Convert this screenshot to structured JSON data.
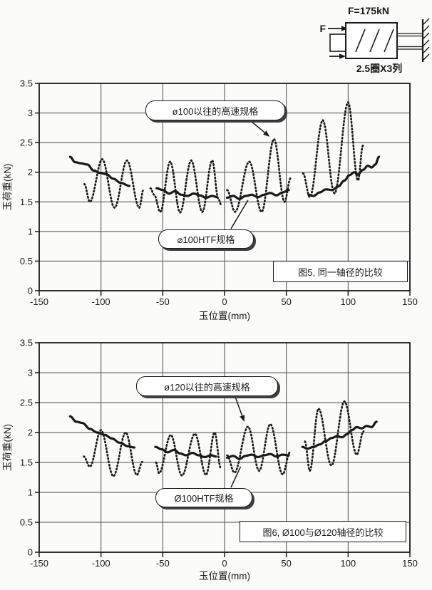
{
  "diagram": {
    "title": "F=175kN",
    "force_label": "F",
    "caption": "2.5圈X3列"
  },
  "colors": {
    "ink": "#1a1a1a",
    "grid": "#4a4a4a",
    "bg": "#fbfbfa",
    "shadow": "#3f3f3f"
  },
  "chart_data": [
    {
      "type": "line",
      "title": "图5, 同一轴径的比较",
      "xlabel": "玉位置(mm)",
      "ylabel": "玉荷重(kN)",
      "xlim": [
        -150,
        150
      ],
      "ylim": [
        0,
        3.5
      ],
      "x_ticks": [
        -150,
        -100,
        -50,
        0,
        50,
        100,
        150
      ],
      "y_ticks": [
        0,
        0.5,
        1,
        1.5,
        2,
        2.5,
        3,
        3.5
      ],
      "grid": true,
      "legend_position": "inline-callouts",
      "series": [
        {
          "name": "ø100以往的高速规格",
          "style": "dotted",
          "segments": [
            [
              [
                -113.5,
                1.8
              ],
              [
                -109,
                1.5
              ],
              [
                -99,
                2.22
              ],
              [
                -89,
                1.4
              ],
              [
                -79,
                2.2
              ],
              [
                -69,
                1.4
              ],
              [
                -65.5,
                1.72
              ]
            ],
            [
              [
                -60,
                1.73
              ],
              [
                -57,
                1.62
              ],
              [
                -52,
                1.33
              ],
              [
                -44,
                2.18
              ],
              [
                -36,
                1.32
              ],
              [
                -27,
                2.2
              ],
              [
                -18,
                1.33
              ],
              [
                -10,
                2.2
              ],
              [
                -5,
                1.55
              ],
              [
                -2.5,
                1.44
              ]
            ],
            [
              [
                2,
                1.7
              ],
              [
                8.5,
                1.33
              ],
              [
                20,
                2.18
              ],
              [
                30,
                1.33
              ],
              [
                40,
                2.56
              ],
              [
                48.5,
                1.5
              ],
              [
                53.5,
                1.9
              ]
            ],
            [
              [
                63.5,
                1.98
              ],
              [
                69,
                1.58
              ],
              [
                79.5,
                2.88
              ],
              [
                89,
                1.64
              ],
              [
                100,
                3.18
              ],
              [
                108,
                1.86
              ],
              [
                112,
                2.45
              ]
            ]
          ]
        },
        {
          "name": "⌀100HTF规格",
          "style": "solid",
          "segments": [
            [
              [
                -125,
                2.26
              ],
              [
                -121,
                2.17
              ],
              [
                -116,
                2.15
              ],
              [
                -111,
                2.13
              ],
              [
                -106,
                2.03
              ],
              [
                -101,
                1.99
              ],
              [
                -96,
                1.97
              ],
              [
                -90,
                1.89
              ],
              [
                -84,
                1.82
              ],
              [
                -77,
                1.77
              ]
            ],
            [
              [
                -55,
                1.73
              ],
              [
                -50,
                1.7
              ],
              [
                -45,
                1.64
              ],
              [
                -40,
                1.68
              ],
              [
                -35,
                1.62
              ],
              [
                -30,
                1.6
              ],
              [
                -25,
                1.64
              ],
              [
                -20,
                1.61
              ],
              [
                -15,
                1.57
              ],
              [
                -10,
                1.6
              ],
              [
                -6,
                1.58
              ]
            ],
            [
              [
                2,
                1.57
              ],
              [
                7,
                1.6
              ],
              [
                12,
                1.55
              ],
              [
                17,
                1.6
              ],
              [
                22,
                1.62
              ],
              [
                27,
                1.58
              ],
              [
                32,
                1.62
              ],
              [
                37,
                1.65
              ],
              [
                42,
                1.61
              ],
              [
                47,
                1.66
              ],
              [
                52,
                1.7
              ]
            ],
            [
              [
                68,
                1.62
              ],
              [
                72,
                1.6
              ],
              [
                77,
                1.66
              ],
              [
                82,
                1.71
              ],
              [
                87,
                1.7
              ],
              [
                92,
                1.76
              ],
              [
                97,
                1.86
              ],
              [
                101,
                1.95
              ],
              [
                105,
                2.0
              ],
              [
                108,
                1.96
              ],
              [
                112,
                2.04
              ],
              [
                116,
                2.11
              ],
              [
                119,
                2.08
              ],
              [
                122,
                2.13
              ],
              [
                125,
                2.26
              ]
            ]
          ]
        }
      ],
      "annotations": [
        {
          "series": 0,
          "target_x": 36.5,
          "target_y": 2.6,
          "arrowhead": true
        },
        {
          "series": 1,
          "target_x": 19,
          "target_y": 1.53,
          "arrowhead": false
        }
      ]
    },
    {
      "type": "line",
      "title": "图6, Ø100与Ø120轴径的比较",
      "xlabel": "玉位置(mm)",
      "ylabel": "玉荷重(kN)",
      "xlim": [
        -150,
        150
      ],
      "ylim": [
        0,
        3.5
      ],
      "x_ticks": [
        -150,
        -100,
        -50,
        0,
        50,
        100,
        150
      ],
      "y_ticks": [
        0,
        0.5,
        1,
        1.5,
        2,
        2.5,
        3,
        3.5
      ],
      "grid": true,
      "legend_position": "inline-callouts",
      "series": [
        {
          "name": "ø120以往的高速规格",
          "style": "dotted",
          "segments": [
            [
              [
                -114,
                1.6
              ],
              [
                -109,
                1.43
              ],
              [
                -100,
                2.04
              ],
              [
                -90,
                1.27
              ],
              [
                -80,
                2.0
              ],
              [
                -71,
                1.29
              ],
              [
                -66.5,
                1.51
              ]
            ],
            [
              [
                -55.5,
                1.5
              ],
              [
                -53,
                1.32
              ],
              [
                -43.5,
                1.96
              ],
              [
                -34.5,
                1.28
              ],
              [
                -24,
                1.98
              ],
              [
                -15,
                1.29
              ],
              [
                -8,
                2.0
              ],
              [
                -3,
                1.4
              ]
            ],
            [
              [
                2,
                1.62
              ],
              [
                8,
                1.33
              ],
              [
                19,
                2.1
              ],
              [
                28,
                1.36
              ],
              [
                37,
                2.14
              ],
              [
                47,
                1.3
              ],
              [
                53,
                1.67
              ]
            ],
            [
              [
                65,
                1.85
              ],
              [
                69,
                1.36
              ],
              [
                76,
                2.4
              ],
              [
                86.5,
                1.45
              ],
              [
                97,
                2.52
              ],
              [
                107,
                1.63
              ],
              [
                112.5,
                2.02
              ]
            ]
          ]
        },
        {
          "name": "Ø100HTF规格",
          "style": "solid",
          "segments": [
            [
              [
                -125,
                2.27
              ],
              [
                -120,
                2.18
              ],
              [
                -115,
                2.16
              ],
              [
                -109,
                2.06
              ],
              [
                -103,
                2.0
              ],
              [
                -97,
                1.96
              ],
              [
                -91,
                1.9
              ],
              [
                -85,
                1.83
              ],
              [
                -78,
                1.77
              ],
              [
                -73,
                1.75
              ]
            ],
            [
              [
                -56,
                1.76
              ],
              [
                -51,
                1.72
              ],
              [
                -46,
                1.67
              ],
              [
                -41,
                1.71
              ],
              [
                -36,
                1.65
              ],
              [
                -31,
                1.62
              ],
              [
                -26,
                1.66
              ],
              [
                -21,
                1.62
              ],
              [
                -16,
                1.59
              ],
              [
                -11,
                1.62
              ],
              [
                -7,
                1.6
              ]
            ],
            [
              [
                2,
                1.58
              ],
              [
                7,
                1.61
              ],
              [
                12,
                1.56
              ],
              [
                17,
                1.61
              ],
              [
                22,
                1.63
              ],
              [
                27,
                1.59
              ],
              [
                32,
                1.62
              ],
              [
                37,
                1.64
              ],
              [
                42,
                1.6
              ],
              [
                47,
                1.63
              ],
              [
                52,
                1.62
              ]
            ],
            [
              [
                63,
                1.76
              ],
              [
                67,
                1.73
              ],
              [
                72,
                1.76
              ],
              [
                77,
                1.8
              ],
              [
                82,
                1.86
              ],
              [
                87,
                1.91
              ],
              [
                91,
                1.94
              ],
              [
                95,
                1.92
              ],
              [
                99,
                1.97
              ],
              [
                103,
                2.04
              ],
              [
                107,
                2.09
              ],
              [
                111,
                2.07
              ],
              [
                115,
                2.11
              ],
              [
                119,
                2.09
              ],
              [
                123,
                2.18
              ]
            ]
          ]
        }
      ],
      "annotations": [
        {
          "series": 0,
          "target_x": 16,
          "target_y": 2.18,
          "arrowhead": true
        },
        {
          "series": 1,
          "target_x": 13,
          "target_y": 1.43,
          "arrowhead": false
        }
      ]
    }
  ]
}
